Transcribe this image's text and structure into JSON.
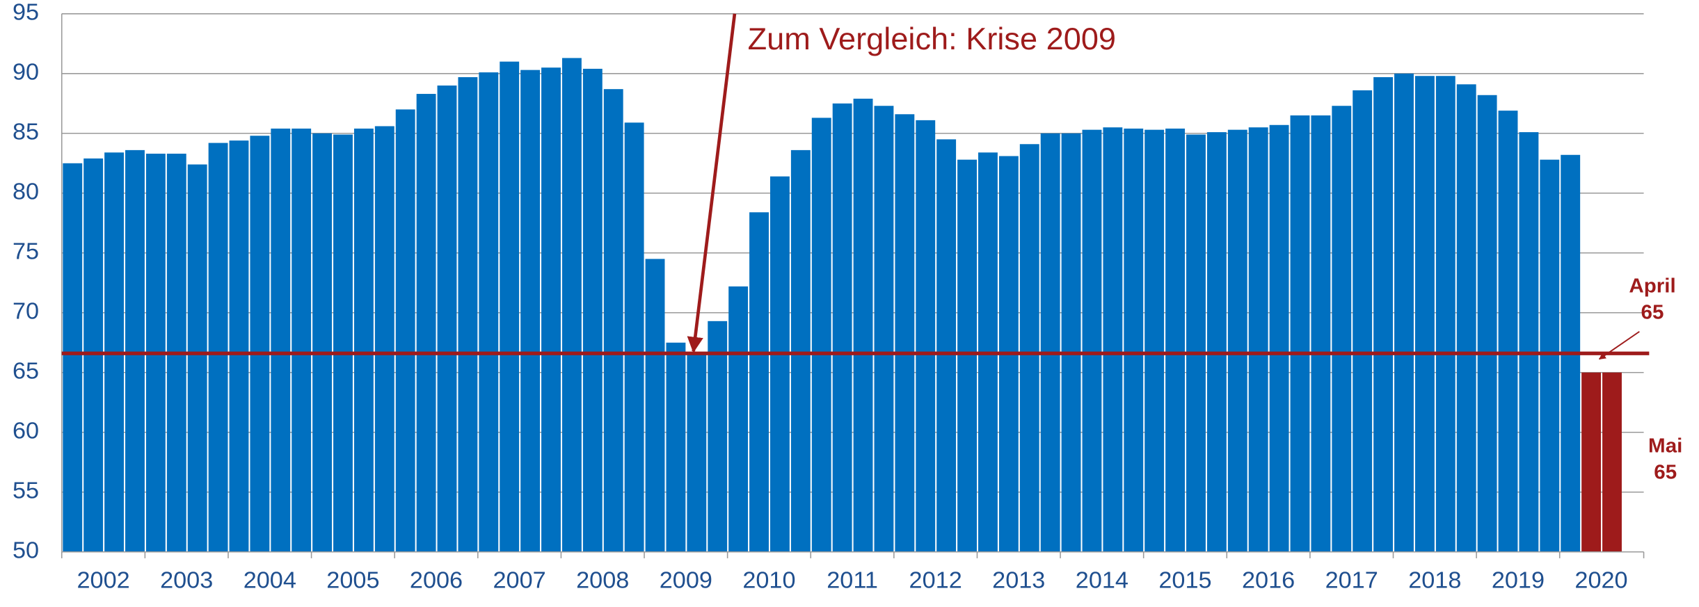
{
  "chart_data": {
    "type": "bar",
    "annotation": "Zum Vergleich: Krise 2009",
    "x_labels": [
      "2002",
      "2003",
      "2004",
      "2005",
      "2006",
      "2007",
      "2008",
      "2009",
      "2010",
      "2011",
      "2012",
      "2013",
      "2014",
      "2015",
      "2016",
      "2017",
      "2018",
      "2019",
      "2020"
    ],
    "values": [
      82.5,
      82.9,
      83.4,
      83.6,
      83.3,
      83.3,
      82.4,
      84.2,
      84.4,
      84.8,
      85.4,
      85.4,
      85.0,
      84.9,
      85.4,
      85.6,
      87.0,
      88.3,
      89.0,
      89.7,
      90.1,
      91.0,
      90.3,
      90.5,
      91.3,
      90.4,
      88.7,
      85.9,
      74.5,
      67.5,
      66.5,
      69.3,
      72.2,
      78.4,
      81.4,
      83.6,
      86.3,
      87.5,
      87.9,
      87.3,
      86.6,
      86.1,
      84.5,
      82.8,
      83.4,
      83.1,
      84.1,
      85.0,
      85.0,
      85.3,
      85.5,
      85.4,
      85.3,
      85.4,
      84.9,
      85.1,
      85.3,
      85.5,
      85.7,
      86.5,
      86.5,
      87.3,
      88.6,
      89.7,
      90.0,
      89.8,
      89.8,
      89.1,
      88.2,
      86.9,
      85.1,
      82.8,
      83.2
    ],
    "color": "#0070c0",
    "highlight": {
      "labels": [
        "April",
        "Mai"
      ],
      "values": [
        65,
        65
      ],
      "value_labels": [
        "65",
        "65"
      ],
      "color": "#9e1b1b"
    },
    "reference_line": 66.6,
    "reference_color": "#9e1b1b",
    "ylim": [
      50,
      95
    ],
    "yticks": [
      50,
      55,
      60,
      65,
      70,
      75,
      80,
      85,
      90,
      95
    ],
    "grid": true
  }
}
